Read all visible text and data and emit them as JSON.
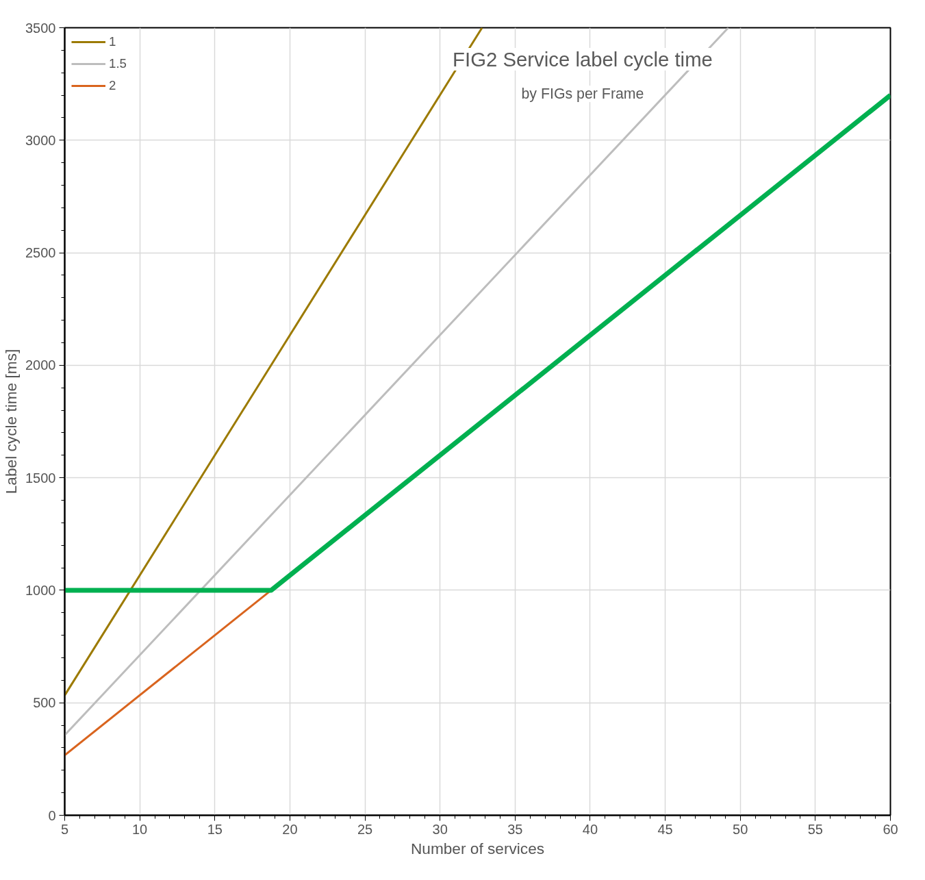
{
  "chart_data": {
    "type": "line",
    "title": "FIG2 Service label cycle time",
    "subtitle": "by FIGs per Frame",
    "xlabel": "Number of services",
    "ylabel": "Label cycle time [ms]",
    "series": [
      {
        "name": "1",
        "color": "#9c7a00",
        "x": [
          5,
          32.8
        ],
        "values": [
          533,
          3500
        ]
      },
      {
        "name": "1.5",
        "color": "#bdbdbd",
        "x": [
          5,
          49.2
        ],
        "values": [
          356,
          3500
        ]
      },
      {
        "name": "2",
        "color": "#d9641e",
        "x": [
          5,
          18.75
        ],
        "values": [
          267,
          1000
        ]
      },
      {
        "color": "#00b050",
        "x": [
          5,
          18.75,
          60
        ],
        "values": [
          1000,
          1000,
          3200
        ]
      }
    ],
    "xlim": [
      5,
      60
    ],
    "xticks": [
      5,
      10,
      15,
      20,
      25,
      30,
      35,
      40,
      45,
      50,
      55,
      60
    ],
    "ylim": [
      0,
      3500
    ],
    "yticks": [
      0,
      500,
      1000,
      1500,
      2000,
      2500,
      3000,
      3500
    ],
    "grid": true,
    "legend": "top left",
    "marker": "none",
    "line_style": "solid"
  }
}
